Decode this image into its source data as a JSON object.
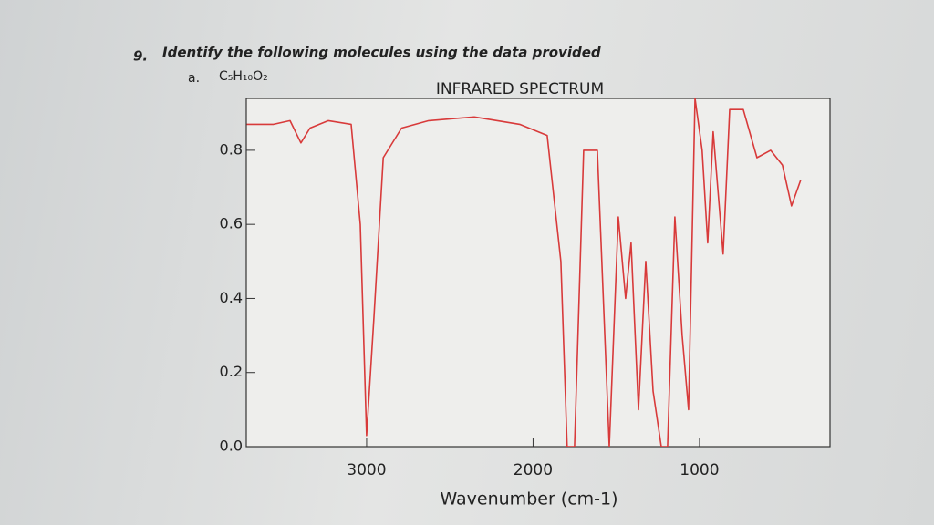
{
  "question": {
    "number": "9.",
    "text": "Identify the following molecules using the data provided",
    "part": "a.",
    "formula": "C₅H₁₀O₂"
  },
  "chart_data": {
    "type": "line",
    "title": "INFRARED SPECTRUM",
    "x_label": "Wavenumber (cm-1)",
    "color": "#d83a3a",
    "x": [
      3720,
      3559,
      3460,
      3395,
      3340,
      3230,
      3093,
      3038,
      3000,
      2956,
      2900,
      2790,
      2627,
      2353,
      2080,
      1915,
      1833,
      1795,
      1751,
      1696,
      1614,
      1542,
      1488,
      1444,
      1411,
      1367,
      1323,
      1279,
      1230,
      1192,
      1148,
      1104,
      1066,
      1027,
      984,
      951,
      918,
      858,
      819,
      737,
      655,
      573,
      502,
      447,
      392
    ],
    "values": [
      0.87,
      0.87,
      0.88,
      0.82,
      0.86,
      0.88,
      0.87,
      0.6,
      0.03,
      0.35,
      0.78,
      0.86,
      0.88,
      0.89,
      0.87,
      0.84,
      0.5,
      0.0,
      0.0,
      0.8,
      0.8,
      0.0,
      0.62,
      0.4,
      0.55,
      0.1,
      0.5,
      0.15,
      0.0,
      0.0,
      0.62,
      0.3,
      0.1,
      0.94,
      0.8,
      0.55,
      0.85,
      0.52,
      0.91,
      0.91,
      0.78,
      0.8,
      0.76,
      0.65,
      0.72
    ],
    "xlim": [
      3723,
      216
    ],
    "xticks": [
      3000,
      2000,
      1000
    ],
    "ylim": [
      0,
      0.94
    ],
    "yticks": [
      {
        "value": 0,
        "label": "0.0"
      },
      0.2,
      0.4,
      0.6,
      0.8
    ]
  }
}
